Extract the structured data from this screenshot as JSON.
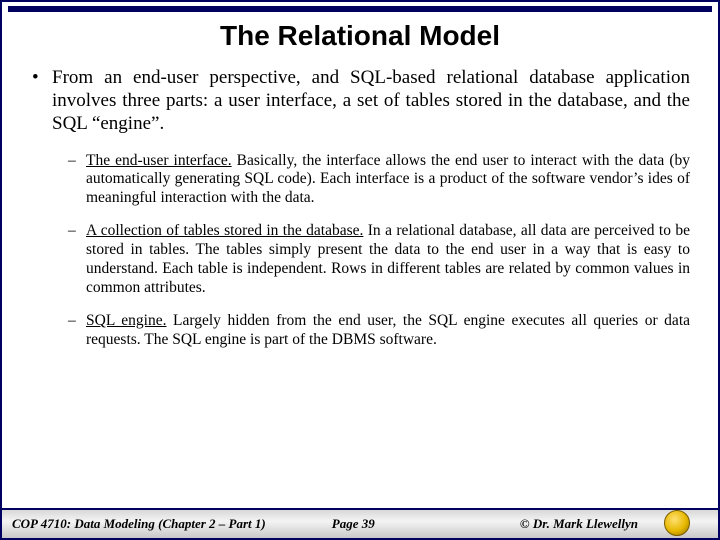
{
  "colors": {
    "frame": "#000060",
    "bg": "#ffffff",
    "text": "#000000",
    "footer_grad_top": "#d8d8d8",
    "footer_grad_mid": "#f4f4f4",
    "footer_grad_bot": "#c8c8c8",
    "seal_light": "#ffe070",
    "seal_mid": "#e6b800",
    "seal_dark": "#8a6a00"
  },
  "typography": {
    "title_family": "Arial",
    "body_family": "Times New Roman",
    "title_size_pt": 21,
    "main_bullet_size_pt": 14,
    "sub_bullet_size_pt": 12,
    "footer_size_pt": 10
  },
  "title": "The Relational Model",
  "main_bullet": "From an end-user perspective, and SQL-based relational database application involves three parts: a user interface, a set of tables stored in the database, and the SQL “engine”.",
  "sub_bullets": [
    {
      "lead": "The end-user interface.",
      "rest": "  Basically, the interface allows the end user to interact with the data (by automatically generating SQL code).  Each interface is a product of the software vendor’s ides of meaningful interaction with the data."
    },
    {
      "lead": "A collection of tables stored in the database.",
      "rest": " In a relational database, all data are perceived to be stored in tables.  The tables simply present the data to the end user in a way that is easy to understand.  Each table is independent.  Rows in different tables are related by common values in common attributes."
    },
    {
      "lead": "SQL engine.",
      "rest": "  Largely hidden from the end user, the SQL engine executes all queries or data requests.  The SQL engine is part of the DBMS software."
    }
  ],
  "footer": {
    "left": "COP 4710: Data Modeling (Chapter 2 – Part 1)",
    "center": "Page 39",
    "right": "© Dr. Mark Llewellyn"
  }
}
